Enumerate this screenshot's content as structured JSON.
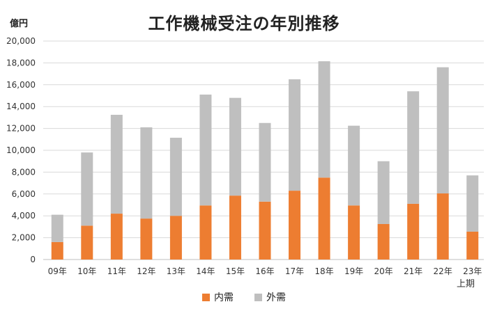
{
  "chart_data": {
    "type": "bar",
    "stacked": true,
    "title": "工作機械受注の年別推移",
    "ylabel": "億円",
    "ylim": [
      0,
      20000
    ],
    "yticks": [
      "0",
      "2,000",
      "4,000",
      "6,000",
      "8,000",
      "10,000",
      "12,000",
      "14,000",
      "16,000",
      "18,000",
      "20,000"
    ],
    "categories": [
      "09年",
      "10年",
      "11年",
      "12年",
      "13年",
      "14年",
      "15年",
      "16年",
      "17年",
      "18年",
      "19年",
      "20年",
      "21年",
      "22年",
      "23年"
    ],
    "category_note": "上期",
    "grid": true,
    "legend_position": "bottom",
    "series": [
      {
        "name": "内需",
        "color": "#ed7d31",
        "values": [
          1600,
          3100,
          4200,
          3750,
          4000,
          4950,
          5850,
          5300,
          6300,
          7500,
          4950,
          3250,
          5100,
          6050,
          2550
        ]
      },
      {
        "name": "外需",
        "color": "#bfbfbf",
        "values": [
          2500,
          6700,
          9050,
          8350,
          7150,
          10150,
          8950,
          7200,
          10200,
          10650,
          7300,
          5750,
          10300,
          11550,
          5150
        ]
      }
    ]
  }
}
